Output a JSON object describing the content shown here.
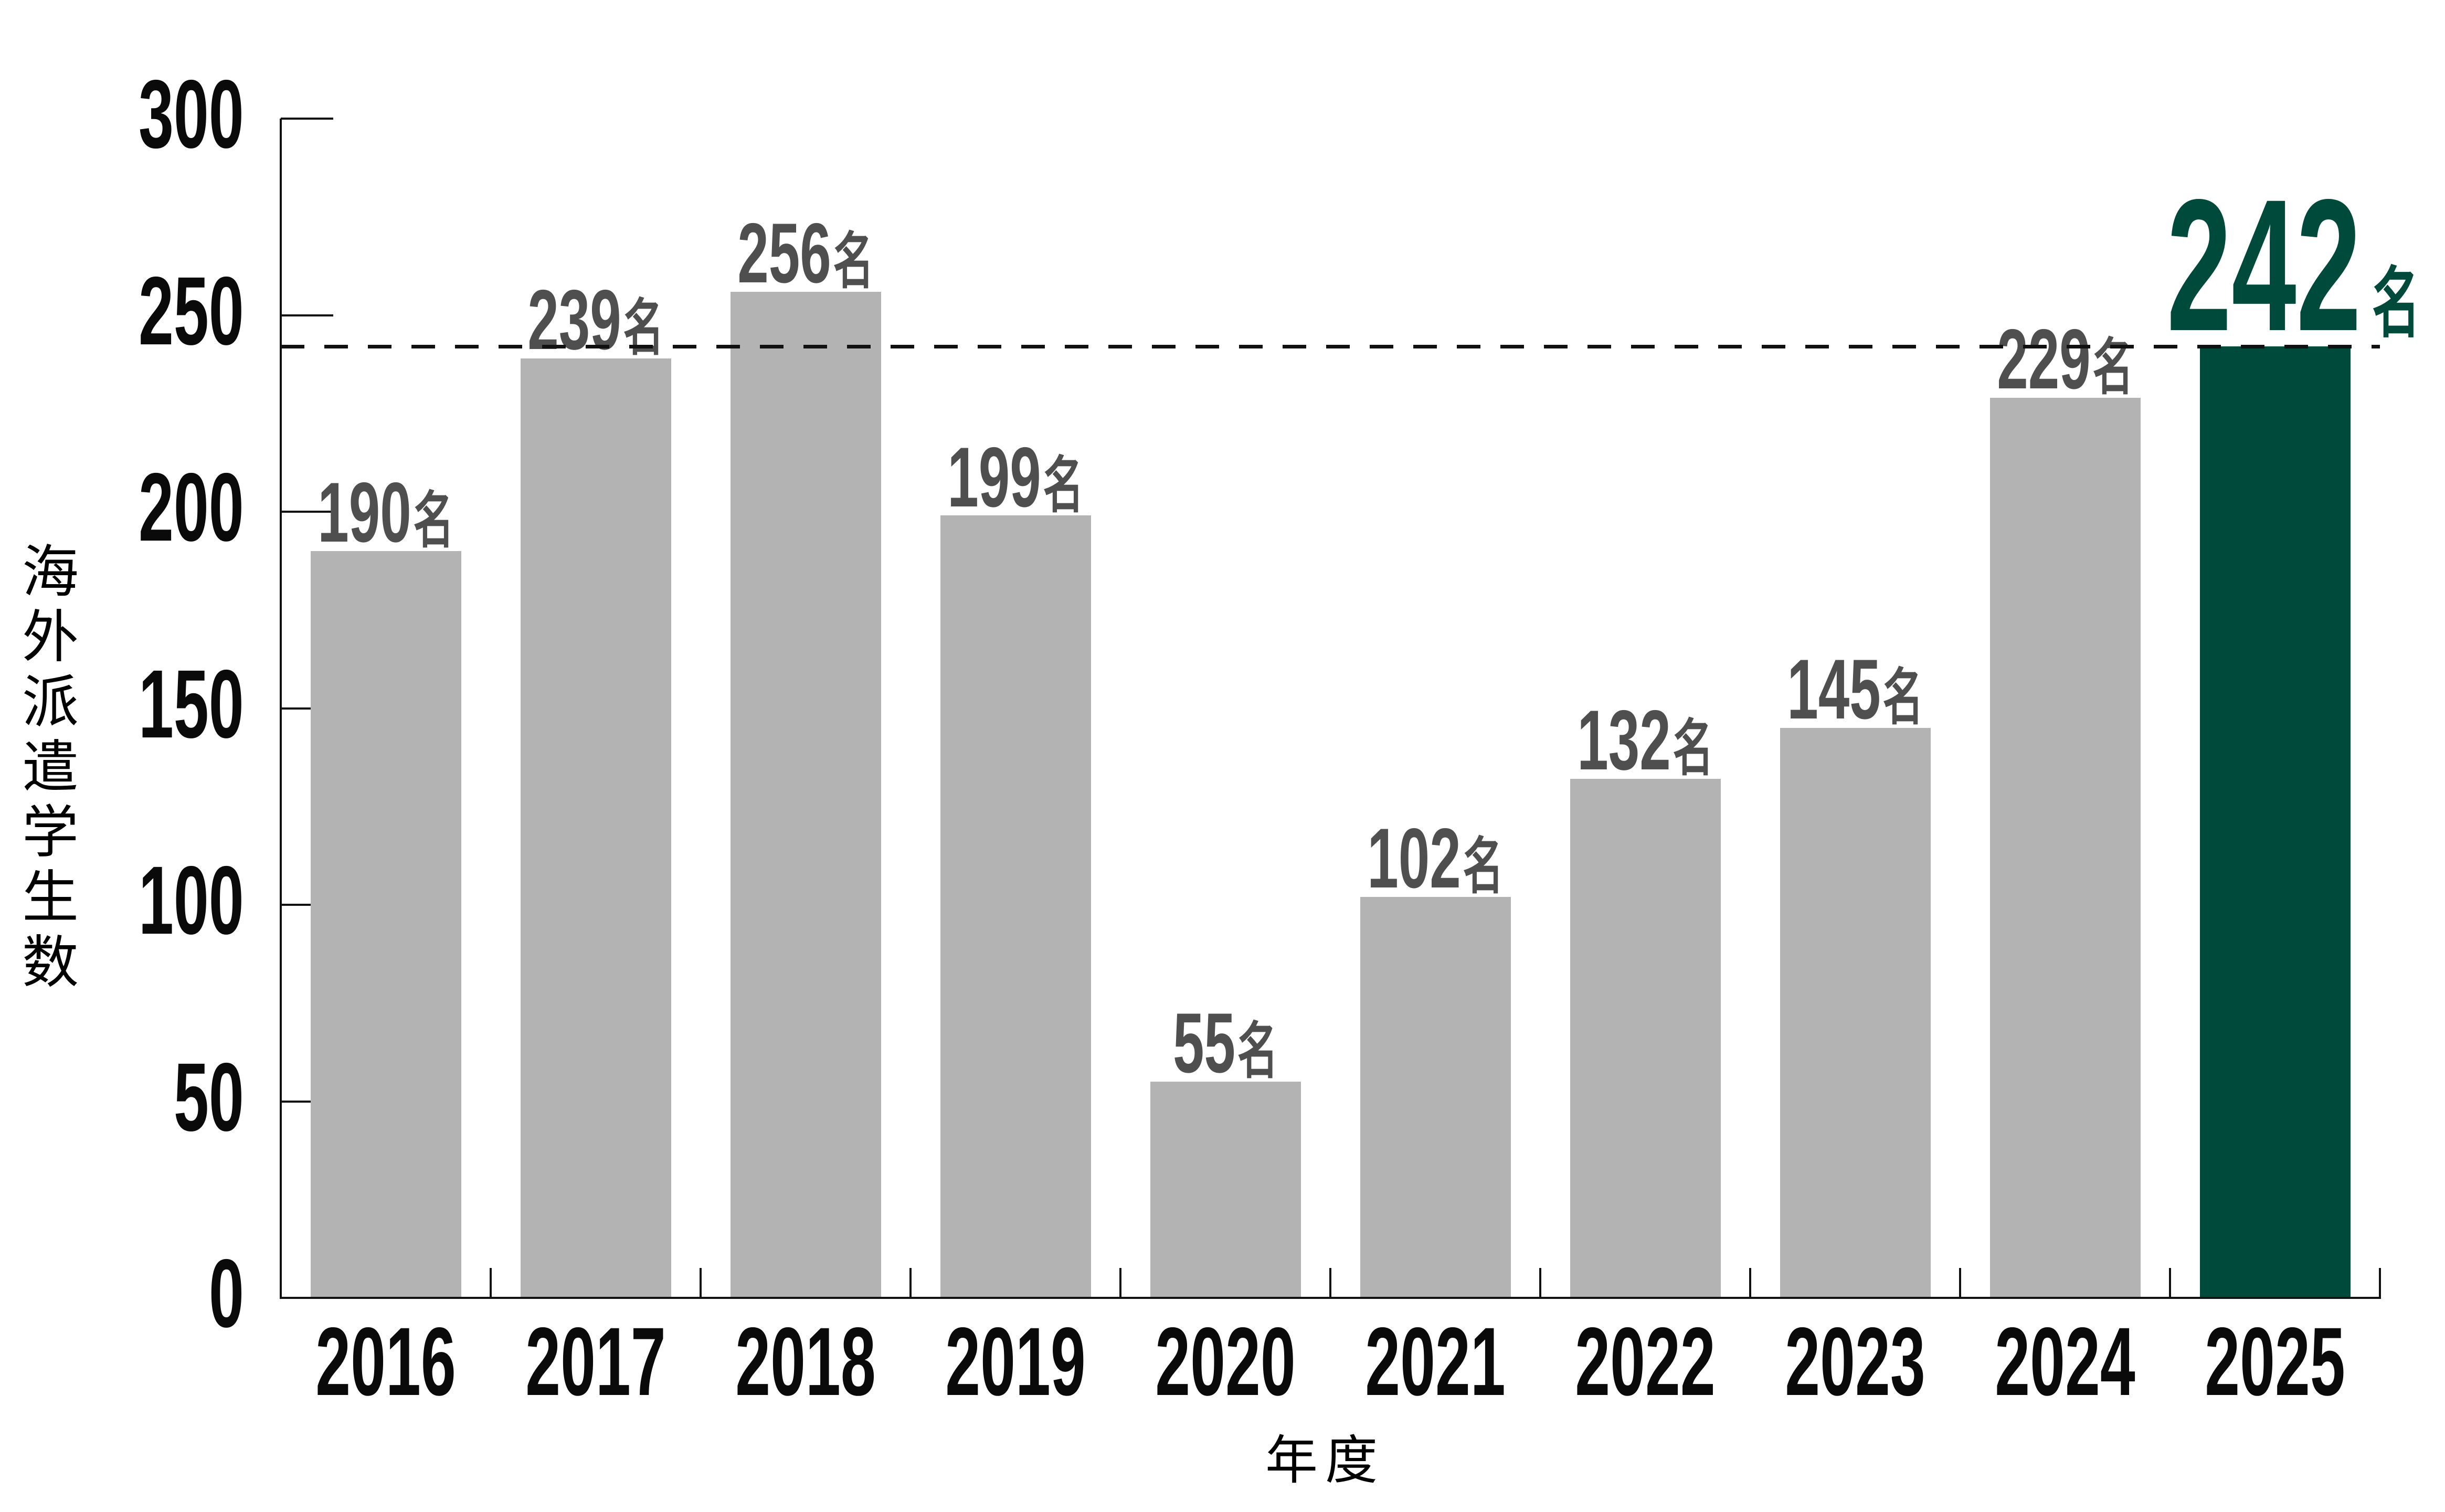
{
  "chart_data": {
    "type": "bar",
    "categories": [
      "2016",
      "2017",
      "2018",
      "2019",
      "2020",
      "2021",
      "2022",
      "2023",
      "2024",
      "2025"
    ],
    "values": [
      190,
      239,
      256,
      199,
      55,
      102,
      132,
      145,
      229,
      242
    ],
    "unit_suffix": "名",
    "xlabel": "年度",
    "ylabel": "海外派遣学生数",
    "ylim": [
      0,
      300
    ],
    "yticks": [
      0,
      50,
      100,
      150,
      200,
      250,
      300
    ],
    "grid": "off",
    "legend": "none",
    "highlight": {
      "index": 9,
      "value_display": "242",
      "suffix": "名"
    },
    "reference_line": {
      "value": 242,
      "style": "dashed"
    },
    "colors": {
      "bar": "#b3b3b3",
      "highlight_bar": "#004a3c",
      "value_label": "#4f4f4f",
      "highlight_label": "#004a3c",
      "axis": "#111111",
      "tick_label": "#0a0a0a",
      "background": "#ffffff"
    }
  }
}
